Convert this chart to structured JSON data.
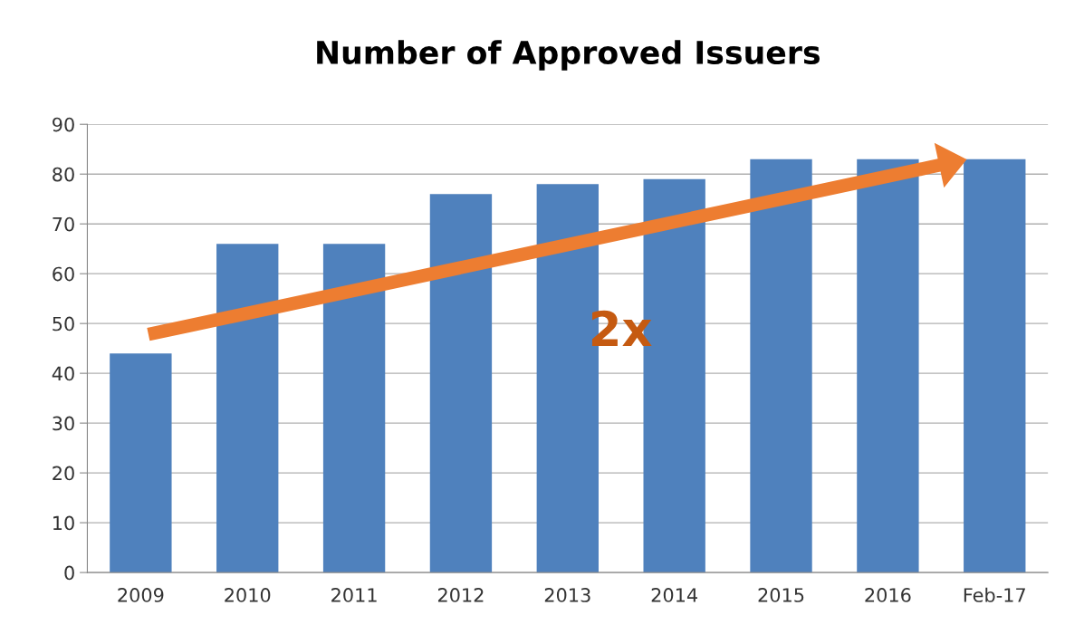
{
  "chart_data": {
    "type": "bar",
    "title": "Number of Approved Issuers",
    "categories": [
      "2009",
      "2010",
      "2011",
      "2012",
      "2013",
      "2014",
      "2015",
      "2016",
      "Feb-17"
    ],
    "values": [
      44,
      66,
      66,
      76,
      78,
      79,
      83,
      83,
      83
    ],
    "color": "#4f81bd",
    "ylim": [
      0,
      90
    ],
    "yticks": [
      0,
      10,
      20,
      30,
      40,
      50,
      60,
      70,
      80,
      90
    ],
    "grid": "y",
    "annotations": [
      "2x"
    ]
  }
}
